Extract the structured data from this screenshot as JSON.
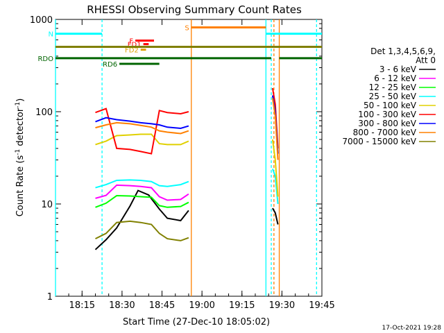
{
  "chart_data": {
    "type": "line",
    "title": "RHESSI Observing Summary Count Rates",
    "xlabel": "Start Time (27-Dec-10 18:05:02)",
    "ylabel": "Count Rate (s",
    "ylabel_exp": "-1",
    "ylabel_tail": " detector",
    "ylabel_close": ")",
    "y_scale": "log",
    "ylim": [
      1,
      1000
    ],
    "xlim": [
      "18:05:02",
      "19:45:00"
    ],
    "x_ticks": [
      "18:15",
      "18:30",
      "18:45",
      "19:00",
      "19:15",
      "19:30",
      "19:45"
    ],
    "y_ticks": [
      "1",
      "10",
      "100",
      "1000"
    ],
    "legend_position": "right",
    "legend_title": [
      "Det 1,3,4,5,6,9,",
      "Att 0"
    ],
    "series": [
      {
        "name": "3 - 6 keV",
        "color": "#000000",
        "points": [
          [
            "18:20",
            3.2
          ],
          [
            "18:24",
            4.1
          ],
          [
            "18:28",
            5.5
          ],
          [
            "18:33",
            9.5
          ],
          [
            "18:36",
            14.0
          ],
          [
            "18:40",
            12.5
          ],
          [
            "18:44",
            8.8
          ],
          [
            "18:47",
            7.0
          ],
          [
            "18:52",
            6.6
          ],
          [
            "18:55",
            8.5
          ]
        ]
      },
      {
        "name": "6 - 12 keV",
        "color": "#ff00ff",
        "points": [
          [
            "18:20",
            11.5
          ],
          [
            "18:24",
            12.4
          ],
          [
            "18:28",
            16.0
          ],
          [
            "18:33",
            15.8
          ],
          [
            "18:37",
            15.5
          ],
          [
            "18:41",
            15.0
          ],
          [
            "18:44",
            12.0
          ],
          [
            "18:47",
            11.0
          ],
          [
            "18:52",
            11.2
          ],
          [
            "18:55",
            12.8
          ]
        ]
      },
      {
        "name": "12 - 25 keV",
        "color": "#00ff00",
        "points": [
          [
            "18:20",
            9.2
          ],
          [
            "18:24",
            10.2
          ],
          [
            "18:28",
            12.3
          ],
          [
            "18:33",
            12.2
          ],
          [
            "18:37",
            12.0
          ],
          [
            "18:41",
            11.8
          ],
          [
            "18:44",
            9.6
          ],
          [
            "18:47",
            9.2
          ],
          [
            "18:52",
            9.4
          ],
          [
            "18:55",
            10.4
          ]
        ]
      },
      {
        "name": "25 - 50 keV",
        "color": "#00ffff",
        "points": [
          [
            "18:20",
            15.0
          ],
          [
            "18:24",
            16.2
          ],
          [
            "18:28",
            18.0
          ],
          [
            "18:33",
            18.2
          ],
          [
            "18:37",
            18.0
          ],
          [
            "18:41",
            17.5
          ],
          [
            "18:44",
            15.8
          ],
          [
            "18:47",
            15.5
          ],
          [
            "18:52",
            16.2
          ],
          [
            "18:55",
            17.5
          ]
        ]
      },
      {
        "name": "50 - 100 keV",
        "color": "#e0d000",
        "points": [
          [
            "18:20",
            44
          ],
          [
            "18:24",
            48
          ],
          [
            "18:28",
            55
          ],
          [
            "18:33",
            56
          ],
          [
            "18:37",
            57
          ],
          [
            "18:41",
            57
          ],
          [
            "18:44",
            45
          ],
          [
            "18:47",
            44
          ],
          [
            "18:52",
            44
          ],
          [
            "18:55",
            48
          ]
        ]
      },
      {
        "name": "100 - 300 keV",
        "color": "#ff0000",
        "points": [
          [
            "18:20",
            98
          ],
          [
            "18:24",
            108
          ],
          [
            "18:28",
            40
          ],
          [
            "18:33",
            39
          ],
          [
            "18:37",
            37
          ],
          [
            "18:41",
            35
          ],
          [
            "18:44",
            103
          ],
          [
            "18:47",
            98
          ],
          [
            "18:52",
            95
          ],
          [
            "18:55",
            100
          ]
        ]
      },
      {
        "name": "300 - 800 keV",
        "color": "#0000ff",
        "points": [
          [
            "18:20",
            78
          ],
          [
            "18:24",
            86
          ],
          [
            "18:28",
            82
          ],
          [
            "18:33",
            79
          ],
          [
            "18:37",
            76
          ],
          [
            "18:41",
            74
          ],
          [
            "18:44",
            72
          ],
          [
            "18:47",
            68
          ],
          [
            "18:52",
            66
          ],
          [
            "18:55",
            70
          ]
        ]
      },
      {
        "name": "800 - 7000 keV",
        "color": "#ff8000",
        "points": [
          [
            "18:20",
            67
          ],
          [
            "18:24",
            72
          ],
          [
            "18:28",
            76
          ],
          [
            "18:33",
            74
          ],
          [
            "18:37",
            71
          ],
          [
            "18:41",
            68
          ],
          [
            "18:44",
            62
          ],
          [
            "18:47",
            60
          ],
          [
            "18:52",
            58
          ],
          [
            "18:55",
            62
          ]
        ]
      },
      {
        "name": "7000 - 15000 keV",
        "color": "#808000",
        "points": [
          [
            "18:20",
            4.2
          ],
          [
            "18:24",
            4.8
          ],
          [
            "18:28",
            6.3
          ],
          [
            "18:33",
            6.5
          ],
          [
            "18:37",
            6.3
          ],
          [
            "18:41",
            6.0
          ],
          [
            "18:44",
            4.8
          ],
          [
            "18:47",
            4.2
          ],
          [
            "18:52",
            4.0
          ],
          [
            "18:55",
            4.3
          ]
        ]
      }
    ],
    "late_spike": [
      {
        "color": "#ff0000",
        "points": [
          [
            "19:26:30",
            180
          ],
          [
            "19:27:30",
            120
          ],
          [
            "19:28:30",
            40
          ]
        ]
      },
      {
        "color": "#0000ff",
        "points": [
          [
            "19:26:30",
            150
          ],
          [
            "19:27:30",
            100
          ],
          [
            "19:28:30",
            35
          ]
        ]
      },
      {
        "color": "#ff8000",
        "points": [
          [
            "19:26:30",
            140
          ],
          [
            "19:27:30",
            90
          ],
          [
            "19:28:30",
            30
          ]
        ]
      },
      {
        "color": "#00ffff",
        "points": [
          [
            "19:26:30",
            24
          ],
          [
            "19:27:30",
            20
          ],
          [
            "19:28:30",
            10
          ]
        ]
      },
      {
        "color": "#e0d000",
        "points": [
          [
            "19:26:30",
            50
          ],
          [
            "19:27:30",
            30
          ],
          [
            "19:28:30",
            12
          ]
        ]
      },
      {
        "color": "#000000",
        "points": [
          [
            "19:26:30",
            9
          ],
          [
            "19:27:30",
            8
          ],
          [
            "19:28:30",
            6
          ]
        ]
      }
    ],
    "flag_bars": [
      {
        "label": "N",
        "color": "#00ffff",
        "y_value": 700,
        "segments": [
          [
            "18:05:02",
            "18:22:30"
          ],
          [
            "19:24:00",
            "19:45:00"
          ]
        ]
      },
      {
        "label": "S",
        "color": "#ff8000",
        "y_value": 820,
        "segments": [
          [
            "18:56:00",
            "19:24:00"
          ]
        ]
      },
      {
        "label": "F",
        "color": "#ff0000",
        "y_value": 590,
        "segments": [
          [
            "18:35:00",
            "18:42:00"
          ]
        ]
      },
      {
        "label": "FD1",
        "color": "#ff0000",
        "y_value": 540,
        "segments": [
          [
            "18:38:00",
            "18:40:00"
          ]
        ]
      },
      {
        "label": "FD2",
        "color": "#e0a000",
        "y_value": 470,
        "segments": [
          [
            "18:37:00",
            "18:39:00"
          ]
        ]
      },
      {
        "label": "",
        "color": "#808000",
        "y_value": 505,
        "segments": [
          [
            "18:05:02",
            "19:45:00"
          ]
        ]
      },
      {
        "label": "RDO",
        "color": "#006400",
        "y_value": 380,
        "segments": [
          [
            "18:05:02",
            "19:26:00"
          ],
          [
            "19:29:00",
            "19:45:00"
          ]
        ]
      },
      {
        "label": "RD6",
        "color": "#006400",
        "y_value": 330,
        "segments": [
          [
            "18:29:00",
            "18:44:00"
          ]
        ]
      }
    ],
    "vertical_markers": [
      {
        "color": "#00ffff",
        "style": "dashed",
        "x": "18:22:30"
      },
      {
        "color": "#00ffff",
        "style": "solid",
        "x": "18:05:02"
      },
      {
        "color": "#ff8000",
        "style": "solid",
        "x": "18:56:00"
      },
      {
        "color": "#00ffff",
        "style": "solid",
        "x": "19:24:00"
      },
      {
        "color": "#00ffff",
        "style": "dashed",
        "x": "19:26:00"
      },
      {
        "color": "#ff8000",
        "style": "dashed",
        "x": "19:27:00"
      },
      {
        "color": "#ff8000",
        "style": "solid",
        "x": "19:29:00"
      },
      {
        "color": "#00ffff",
        "style": "dashed",
        "x": "19:43:00"
      }
    ]
  },
  "footer_timestamp": "17-Oct-2021 19:28"
}
